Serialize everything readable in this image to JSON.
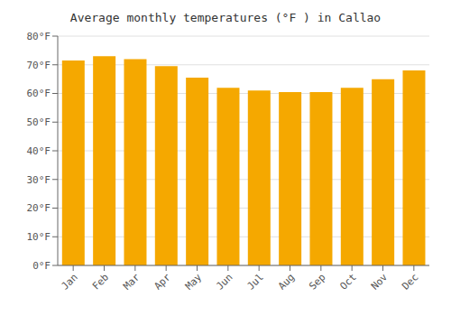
{
  "chart_data": {
    "type": "bar",
    "title": "Average monthly temperatures (°F ) in Callao",
    "categories": [
      "Jan",
      "Feb",
      "Mar",
      "Apr",
      "May",
      "Jun",
      "Jul",
      "Aug",
      "Sep",
      "Oct",
      "Nov",
      "Dec"
    ],
    "values": [
      71.5,
      73.0,
      72.0,
      69.5,
      65.5,
      62.0,
      61.0,
      60.5,
      60.5,
      62.0,
      65.0,
      68.0
    ],
    "color": "#F5A800",
    "ylim": [
      0,
      80
    ],
    "yticks": [
      {
        "value": 0,
        "label": "0°F"
      },
      {
        "value": 10,
        "label": "10°F"
      },
      {
        "value": 20,
        "label": "20°F"
      },
      {
        "value": 30,
        "label": "30°F"
      },
      {
        "value": 40,
        "label": "40°F"
      },
      {
        "value": 50,
        "label": "50°F"
      },
      {
        "value": 60,
        "label": "60°F"
      },
      {
        "value": 70,
        "label": "70°F"
      },
      {
        "value": 80,
        "label": "80°F"
      }
    ],
    "grid": true
  }
}
